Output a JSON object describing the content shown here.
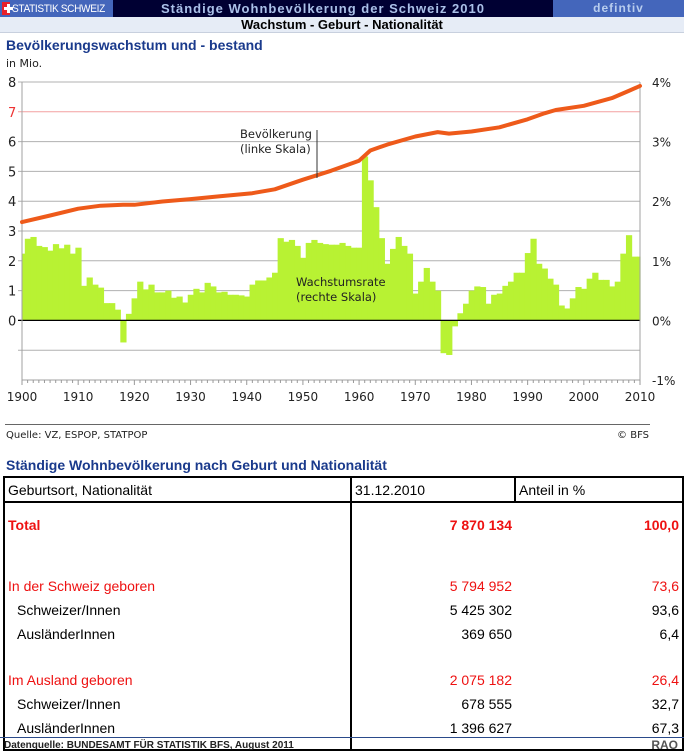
{
  "header": {
    "brand": "STATISTIK SCHWEIZ",
    "title": "Ständige Wohnbevölkerung der Schweiz 2010",
    "status": "defintiv",
    "subtitle": "Wachstum - Geburt - Nationalität"
  },
  "chart_section": {
    "title": "Bevölkerungswachstum und - bestand",
    "source": "Quelle: VZ, ESPOP, STATPOP",
    "copyright": "© BFS"
  },
  "chart_data": {
    "type": "bar+line",
    "title": "Bevölkerungswachstum und - bestand",
    "left_axis_label": "in Mio.",
    "left_ylim": [
      -2,
      8
    ],
    "left_ticks": [
      "0",
      "1",
      "2",
      "3",
      "4",
      "5",
      "6",
      "7",
      "8"
    ],
    "left_tick_values": [
      0,
      1,
      2,
      3,
      4,
      5,
      6,
      7,
      8
    ],
    "highlight_tick": "7",
    "right_ylim": [
      -1,
      4
    ],
    "right_ticks": [
      "-1%",
      "0%",
      "1%",
      "2%",
      "3%",
      "4%"
    ],
    "right_tick_values": [
      -1,
      0,
      1,
      2,
      3,
      4
    ],
    "x_range": [
      1900,
      2010
    ],
    "x_ticks": [
      "1900",
      "1910",
      "1920",
      "1930",
      "1940",
      "1950",
      "1960",
      "1970",
      "1980",
      "1990",
      "2000",
      "2010"
    ],
    "grid": true,
    "annotations": {
      "population": [
        "Bevölkerung",
        "(linke Skala)"
      ],
      "growth": [
        "Wachstumsrate",
        "(rechte Skala)"
      ]
    },
    "series": [
      {
        "name": "Wachstumsrate (rechte Skala)",
        "type": "bar",
        "unit": "%",
        "color": "#b8f233",
        "start_year": 1900,
        "values": [
          1.12,
          1.37,
          1.4,
          1.25,
          1.23,
          1.17,
          1.28,
          1.21,
          1.27,
          1.12,
          1.22,
          0.58,
          0.72,
          0.6,
          0.55,
          0.29,
          0.29,
          0.18,
          -0.37,
          0.11,
          0.37,
          0.65,
          0.52,
          0.6,
          0.47,
          0.47,
          0.5,
          0.38,
          0.4,
          0.3,
          0.43,
          0.53,
          0.47,
          0.63,
          0.57,
          0.47,
          0.48,
          0.43,
          0.43,
          0.42,
          0.4,
          0.6,
          0.67,
          0.67,
          0.72,
          0.8,
          1.38,
          1.32,
          1.35,
          1.25,
          1.05,
          1.3,
          1.35,
          1.3,
          1.28,
          1.27,
          1.27,
          1.3,
          1.25,
          1.22,
          1.22,
          2.75,
          2.35,
          1.9,
          1.38,
          0.95,
          1.2,
          1.4,
          1.25,
          1.12,
          0.45,
          0.65,
          0.88,
          0.65,
          0.5,
          -0.55,
          -0.58,
          -0.1,
          0.12,
          0.28,
          0.5,
          0.57,
          0.56,
          0.28,
          0.43,
          0.45,
          0.58,
          0.65,
          0.8,
          0.8,
          1.13,
          1.37,
          0.95,
          0.87,
          0.7,
          0.6,
          0.25,
          0.2,
          0.37,
          0.56,
          0.53,
          0.7,
          0.8,
          0.68,
          0.68,
          0.57,
          0.65,
          1.12,
          1.43,
          1.07,
          1.07
        ]
      },
      {
        "name": "Bevölkerung (linke Skala)",
        "type": "line",
        "unit": "Mio.",
        "color": "#ee5a1a",
        "x": [
          1900,
          1905,
          1910,
          1914,
          1918,
          1920,
          1925,
          1930,
          1935,
          1941,
          1945,
          1950,
          1955,
          1960,
          1962,
          1965,
          1970,
          1974,
          1976,
          1980,
          1985,
          1990,
          1993,
          1995,
          2000,
          2005,
          2008,
          2010
        ],
        "y": [
          3.3,
          3.52,
          3.75,
          3.85,
          3.88,
          3.88,
          3.99,
          4.07,
          4.16,
          4.27,
          4.4,
          4.72,
          5.02,
          5.36,
          5.7,
          5.9,
          6.17,
          6.32,
          6.27,
          6.34,
          6.48,
          6.75,
          6.95,
          7.06,
          7.2,
          7.46,
          7.7,
          7.87
        ]
      }
    ]
  },
  "table_section": {
    "title": "Ständige Wohnbevölkerung nach Geburt und Nationalität",
    "headers": [
      "Geburtsort, Nationalität",
      "31.12.2010",
      "Anteil in %"
    ],
    "rows": [
      {
        "label": "Total",
        "value": "7 870 134",
        "share": "100,0"
      },
      {
        "label": "In der Schweiz geboren",
        "value": "5 794 952",
        "share": "73,6"
      },
      {
        "label": "Schweizer/Innen",
        "value": "5 425 302",
        "share": "93,6"
      },
      {
        "label": "AusländerInnen",
        "value": "369 650",
        "share": "6,4"
      },
      {
        "label": "Im Ausland geboren",
        "value": "2 075 182",
        "share": "26,4"
      },
      {
        "label": "Schweizer/Innen",
        "value": "678 555",
        "share": "32,7"
      },
      {
        "label": "AusländerInnen",
        "value": "1 396 627",
        "share": "67,3"
      }
    ]
  },
  "footer": {
    "source": "Datenquelle: BUNDESAMT FÜR STATISTIK BFS, August 2011",
    "code": "RAO"
  }
}
